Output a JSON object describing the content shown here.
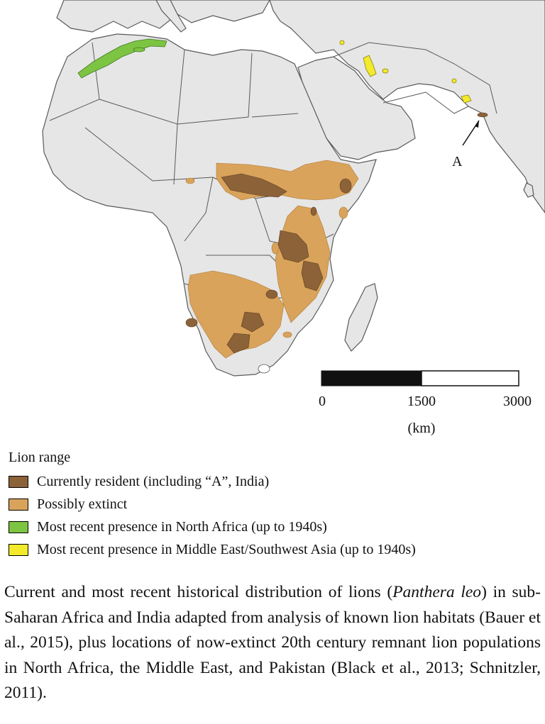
{
  "map": {
    "marker_label": "A",
    "scale_ticks": [
      "0",
      "1500",
      "3000"
    ],
    "scale_unit": "(km)"
  },
  "legend": {
    "title": "Lion range",
    "items": [
      {
        "label": "Currently resident (including “A”, India)",
        "color": "#8c6239"
      },
      {
        "label": "Possibly extinct",
        "color": "#d9a35b"
      },
      {
        "label": "Most recent presence in North Africa (up to 1940s)",
        "color": "#7dc443"
      },
      {
        "label": "Most recent presence in Middle East/Southwest Asia (up to 1940s)",
        "color": "#f2ea2b"
      }
    ]
  },
  "caption": {
    "part1": "Current and most recent historical distribution of lions (",
    "species": "Panthera leo",
    "part2": ") in sub-Saharan Africa and India adapted from analysis of known lion habitats (Bauer et al., 2015), plus locations of now-extinct 20th century remnant lion populations in North Africa, the Middle East, and Pakistan (Black et al., 2013; Schnitzler, 2011)."
  },
  "colors": {
    "sea": "#ffffff",
    "land": "#e6e6e6",
    "border": "#5a5a5a",
    "resident": "#8c6239",
    "extinct": "#d9a35b",
    "north_africa": "#7dc443",
    "middle_east": "#f2ea2b"
  }
}
